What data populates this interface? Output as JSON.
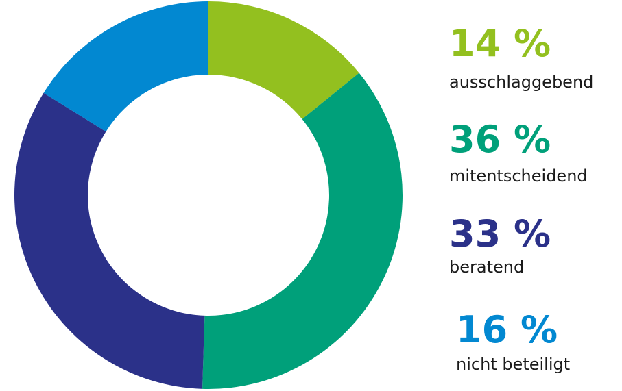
{
  "chart_data": {
    "type": "donut",
    "categories": [
      "ausschlaggebend",
      "mitentscheidend",
      "beratend",
      "nicht beteiligt"
    ],
    "values": [
      14,
      36,
      33,
      16
    ],
    "value_labels": [
      "14 %",
      "36 %",
      "33 %",
      "16 %"
    ],
    "colors": [
      "#93c01f",
      "#00a07a",
      "#2b3189",
      "#0288d1"
    ]
  }
}
